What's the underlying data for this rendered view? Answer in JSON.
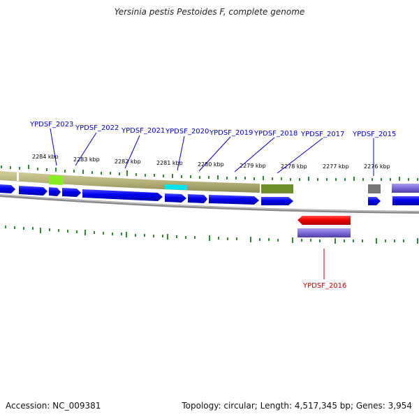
{
  "title": "Yersinia pestis Pestoides F, complete genome",
  "footer": {
    "accession": "Accession: NC_009381",
    "summary": "Topology: circular; Length: 4,517,345 bp; Genes: 3,954"
  },
  "colors": {
    "forward_gene": "#0000ee",
    "reverse_gene": "#ee0000",
    "label_forward": "#0000cc",
    "label_reverse": "#cc0000",
    "tick": "#2e8b2e",
    "backbone": "#888888",
    "feature_band": "#b7b17a",
    "feature_dark": "#6f8f2a",
    "feature_lime": "#88ee22",
    "feature_cyan": "#00e5ee",
    "feature_gray": "#777777",
    "feature_purple": "#7b68d6"
  },
  "kbp_labels": [
    "2284 kbp",
    "2283 kbp",
    "2282 kbp",
    "2281 kbp",
    "2280 kbp",
    "2279 kbp",
    "2278 kbp",
    "2277 kbp",
    "2276 kbp"
  ],
  "gene_labels_forward": [
    "YPDSF_2023",
    "YPDSF_2022",
    "YPDSF_2021",
    "YPDSF_2020",
    "YPDSF_2019",
    "YPDSF_2018",
    "YPDSF_2017",
    "YPDSF_2015"
  ],
  "gene_labels_reverse": [
    "YPDSF_2016"
  ]
}
